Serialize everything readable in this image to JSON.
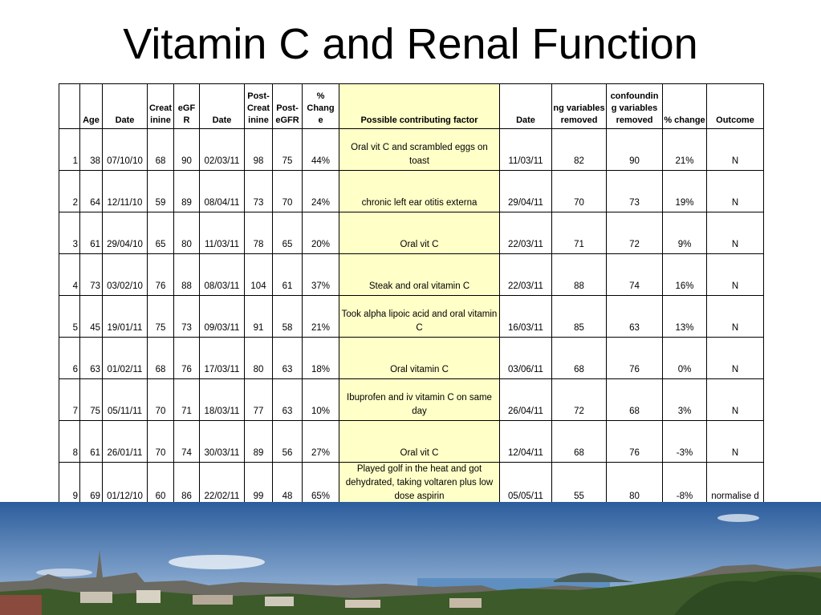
{
  "title": "Vitamin C and Renal Function",
  "table": {
    "headers": [
      "",
      "Age",
      "Date",
      "Creat inine",
      "eGF R",
      "Date",
      "Post- Creat inine",
      "Post- eGFR",
      "% Chang e",
      "Possible contributing factor",
      "Date",
      "ng variables removed",
      "confoundin g variables removed",
      "% change",
      "Outcome"
    ],
    "rows": [
      [
        "1",
        "38",
        "07/10/10",
        "68",
        "90",
        "02/03/11",
        "98",
        "75",
        "44%",
        "Oral vit C and scrambled eggs on toast",
        "11/03/11",
        "82",
        "90",
        "21%",
        "N"
      ],
      [
        "2",
        "64",
        "12/11/10",
        "59",
        "89",
        "08/04/11",
        "73",
        "70",
        "24%",
        "chronic left ear otitis externa",
        "29/04/11",
        "70",
        "73",
        "19%",
        "N"
      ],
      [
        "3",
        "61",
        "29/04/10",
        "65",
        "80",
        "11/03/11",
        "78",
        "65",
        "20%",
        "Oral vit C",
        "22/03/11",
        "71",
        "72",
        "9%",
        "N"
      ],
      [
        "4",
        "73",
        "03/02/10",
        "76",
        "88",
        "08/03/11",
        "104",
        "61",
        "37%",
        "Steak and oral vitamin C",
        "22/03/11",
        "88",
        "74",
        "16%",
        "N"
      ],
      [
        "5",
        "45",
        "19/01/11",
        "75",
        "73",
        "09/03/11",
        "91",
        "58",
        "21%",
        "Took alpha lipoic acid and oral vitamin C",
        "16/03/11",
        "85",
        "63",
        "13%",
        "N"
      ],
      [
        "6",
        "63",
        "01/02/11",
        "68",
        "76",
        "17/03/11",
        "80",
        "63",
        "18%",
        "Oral vitamin C",
        "03/06/11",
        "68",
        "76",
        "0%",
        "N"
      ],
      [
        "7",
        "75",
        "05/11/11",
        "70",
        "71",
        "18/03/11",
        "77",
        "63",
        "10%",
        "Ibuprofen and iv vitamin C on same day",
        "26/04/11",
        "72",
        "68",
        "3%",
        "N"
      ],
      [
        "8",
        "61",
        "26/01/11",
        "70",
        "74",
        "30/03/11",
        "89",
        "56",
        "27%",
        "Oral vit C",
        "12/04/11",
        "68",
        "76",
        "-3%",
        "N"
      ],
      [
        "9",
        "69",
        "01/12/10",
        "60",
        "86",
        "22/02/11",
        "99",
        "48",
        "65%",
        "Played golf in the heat and got dehydrated, taking voltaren plus low dose aspirin",
        "05/05/11",
        "55",
        "80",
        "-8%",
        "normalise d"
      ]
    ]
  },
  "colors": {
    "highlight": "#ffffc8",
    "sky_top": "#2c5d9c",
    "sky_bottom": "#a9c4e2",
    "water": "#5f8fc0",
    "foliage": "#3d5a2a"
  },
  "photo": {
    "icon": "city-skyline-panorama-image"
  }
}
